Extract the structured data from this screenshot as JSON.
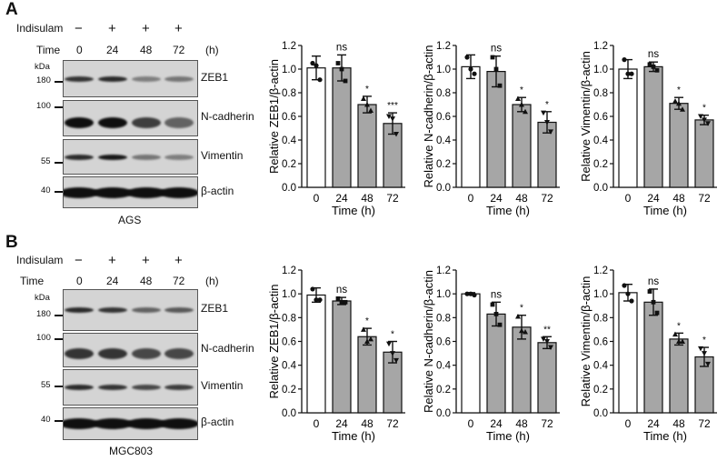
{
  "panels": [
    {
      "label": "A",
      "treatment_label": "Indisulam",
      "treatment": [
        "−",
        "+",
        "+",
        "+"
      ],
      "time_label": "Time",
      "times": [
        "0",
        "24",
        "48",
        "72"
      ],
      "time_unit": "(h)",
      "kda_label": "kDa",
      "markers": [
        "180",
        "100",
        "55",
        "40"
      ],
      "proteins": [
        "ZEB1",
        "N-cadherin",
        "Vimentin",
        "β-actin"
      ],
      "cell_line": "AGS"
    },
    {
      "label": "B",
      "treatment_label": "Indisulam",
      "treatment": [
        "−",
        "+",
        "+",
        "+"
      ],
      "time_label": "Time",
      "times": [
        "0",
        "24",
        "48",
        "72"
      ],
      "time_unit": "(h)",
      "kda_label": "kDa",
      "markers": [
        "180",
        "100",
        "55",
        "40"
      ],
      "proteins": [
        "ZEB1",
        "N-cadherin",
        "Vimentin",
        "β-actin"
      ],
      "cell_line": "MGC803"
    }
  ],
  "colors": {
    "control_bar": "#ffffff",
    "treated_bar": "#a6a6a6",
    "outline": "#111111"
  },
  "chart_data": [
    {
      "type": "bar",
      "panel": "A",
      "categories": [
        "0",
        "24",
        "48",
        "72"
      ],
      "values": [
        1.01,
        1.01,
        0.7,
        0.54
      ],
      "errors": [
        0.1,
        0.11,
        0.07,
        0.09
      ],
      "points": [
        [
          1.05,
          1.03,
          0.91
        ],
        [
          1.05,
          1.0,
          0.9
        ],
        [
          0.75,
          0.7,
          0.65
        ],
        [
          0.6,
          0.58,
          0.45
        ]
      ],
      "significance": [
        "",
        "ns",
        "*",
        "***"
      ],
      "ylabel": "Relative ZEB1/β-actin",
      "xlabel": "Time (h)",
      "ylim": [
        0,
        1.2
      ],
      "yticks": [
        "0.0",
        "0.2",
        "0.4",
        "0.6",
        "0.8",
        "1.0",
        "1.2"
      ]
    },
    {
      "type": "bar",
      "panel": "A",
      "categories": [
        "0",
        "24",
        "48",
        "72"
      ],
      "values": [
        1.02,
        0.98,
        0.7,
        0.55
      ],
      "errors": [
        0.1,
        0.13,
        0.06,
        0.09
      ],
      "points": [
        [
          1.1,
          1.0,
          0.96
        ],
        [
          1.1,
          1.0,
          0.86
        ],
        [
          0.75,
          0.7,
          0.64
        ],
        [
          0.63,
          0.55,
          0.47
        ]
      ],
      "significance": [
        "",
        "ns",
        "*",
        "*"
      ],
      "ylabel": "Relative N-cadherin/β-actin",
      "xlabel": "Time (h)",
      "ylim": [
        0,
        1.2
      ],
      "yticks": [
        "0.0",
        "0.2",
        "0.4",
        "0.6",
        "0.8",
        "1.0",
        "1.2"
      ]
    },
    {
      "type": "bar",
      "panel": "A",
      "categories": [
        "0",
        "24",
        "48",
        "72"
      ],
      "values": [
        1.0,
        1.02,
        0.71,
        0.57
      ],
      "errors": [
        0.08,
        0.04,
        0.05,
        0.04
      ],
      "points": [
        [
          1.08,
          0.96,
          0.96
        ],
        [
          1.04,
          1.02,
          0.99
        ],
        [
          0.73,
          0.71,
          0.66
        ],
        [
          0.6,
          0.57,
          0.54
        ]
      ],
      "significance": [
        "",
        "ns",
        "*",
        "*"
      ],
      "ylabel": "Relative Vimentin/β-actin",
      "xlabel": "Time (h)",
      "ylim": [
        0,
        1.2
      ],
      "yticks": [
        "0.0",
        "0.2",
        "0.4",
        "0.6",
        "0.8",
        "1.0",
        "1.2"
      ]
    },
    {
      "type": "bar",
      "panel": "B",
      "categories": [
        "0",
        "24",
        "48",
        "72"
      ],
      "values": [
        0.99,
        0.94,
        0.64,
        0.51
      ],
      "errors": [
        0.06,
        0.03,
        0.07,
        0.09
      ],
      "points": [
        [
          1.04,
          0.95,
          0.95
        ],
        [
          0.96,
          0.93,
          0.93
        ],
        [
          0.7,
          0.6,
          0.62
        ],
        [
          0.58,
          0.5,
          0.44
        ]
      ],
      "significance": [
        "",
        "ns",
        "*",
        "*"
      ],
      "ylabel": "Relative ZEB1/β-actin",
      "xlabel": "Time (h)",
      "ylim": [
        0,
        1.2
      ],
      "yticks": [
        "0.0",
        "0.2",
        "0.4",
        "0.6",
        "0.8",
        "1.0",
        "1.2"
      ]
    },
    {
      "type": "bar",
      "panel": "B",
      "categories": [
        "0",
        "24",
        "48",
        "72"
      ],
      "values": [
        1.0,
        0.83,
        0.72,
        0.59
      ],
      "errors": [
        0.01,
        0.1,
        0.1,
        0.05
      ],
      "points": [
        [
          1.0,
          1.0,
          0.99
        ],
        [
          0.91,
          0.83,
          0.74
        ],
        [
          0.81,
          0.69,
          0.68
        ],
        [
          0.62,
          0.6,
          0.55
        ]
      ],
      "significance": [
        "",
        "ns",
        "*",
        "**"
      ],
      "ylabel": "Relative N-cadherin/β-actin",
      "xlabel": "Time (h)",
      "ylim": [
        0,
        1.2
      ],
      "yticks": [
        "0.0",
        "0.2",
        "0.4",
        "0.6",
        "0.8",
        "1.0",
        "1.2"
      ]
    },
    {
      "type": "bar",
      "panel": "B",
      "categories": [
        "0",
        "24",
        "48",
        "72"
      ],
      "values": [
        1.01,
        0.93,
        0.62,
        0.47
      ],
      "errors": [
        0.07,
        0.11,
        0.05,
        0.08
      ],
      "points": [
        [
          1.07,
          1.0,
          0.94
        ],
        [
          1.02,
          0.93,
          0.84
        ],
        [
          0.66,
          0.6,
          0.6
        ],
        [
          0.54,
          0.5,
          0.41
        ]
      ],
      "significance": [
        "",
        "ns",
        "*",
        "*"
      ],
      "ylabel": "Relative Vimentin/β-actin",
      "xlabel": "Time (h)",
      "ylim": [
        0,
        1.2
      ],
      "yticks": [
        "0.0",
        "0.2",
        "0.4",
        "0.6",
        "0.8",
        "1.0",
        "1.2"
      ]
    }
  ]
}
